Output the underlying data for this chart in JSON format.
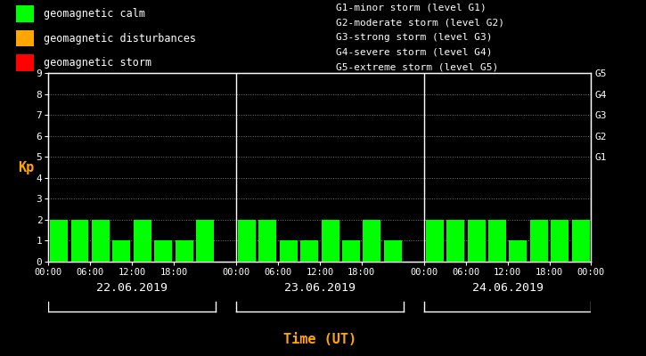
{
  "background_color": "#000000",
  "bar_color_calm": "#00ff00",
  "bar_color_disturbance": "#ffa500",
  "bar_color_storm": "#ff0000",
  "ylabel": "Kp",
  "xlabel": "Time (UT)",
  "ylim": [
    0,
    9
  ],
  "yticks": [
    0,
    1,
    2,
    3,
    4,
    5,
    6,
    7,
    8,
    9
  ],
  "days": [
    "22.06.2019",
    "23.06.2019",
    "24.06.2019"
  ],
  "kp_values": [
    [
      2,
      2,
      2,
      1,
      2,
      1,
      1,
      2
    ],
    [
      2,
      2,
      1,
      1,
      2,
      1,
      2,
      1
    ],
    [
      2,
      2,
      2,
      2,
      1,
      2,
      2,
      2
    ]
  ],
  "time_labels": [
    "00:00",
    "06:00",
    "12:00",
    "18:00",
    "00:00"
  ],
  "legend_items": [
    {
      "label": "geomagnetic calm",
      "color": "#00ff00"
    },
    {
      "label": "geomagnetic disturbances",
      "color": "#ffa500"
    },
    {
      "label": "geomagnetic storm",
      "color": "#ff0000"
    }
  ],
  "right_legend_texts": [
    "G1-minor storm (level G1)",
    "G2-moderate storm (level G2)",
    "G3-strong storm (level G3)",
    "G4-severe storm (level G4)",
    "G5-extreme storm (level G5)"
  ],
  "right_axis_labels": [
    "G1",
    "G2",
    "G3",
    "G4",
    "G5"
  ],
  "right_axis_positions": [
    5,
    6,
    7,
    8,
    9
  ],
  "text_color": "#ffffff",
  "orange_color": "#ffa500",
  "font_family": "monospace"
}
